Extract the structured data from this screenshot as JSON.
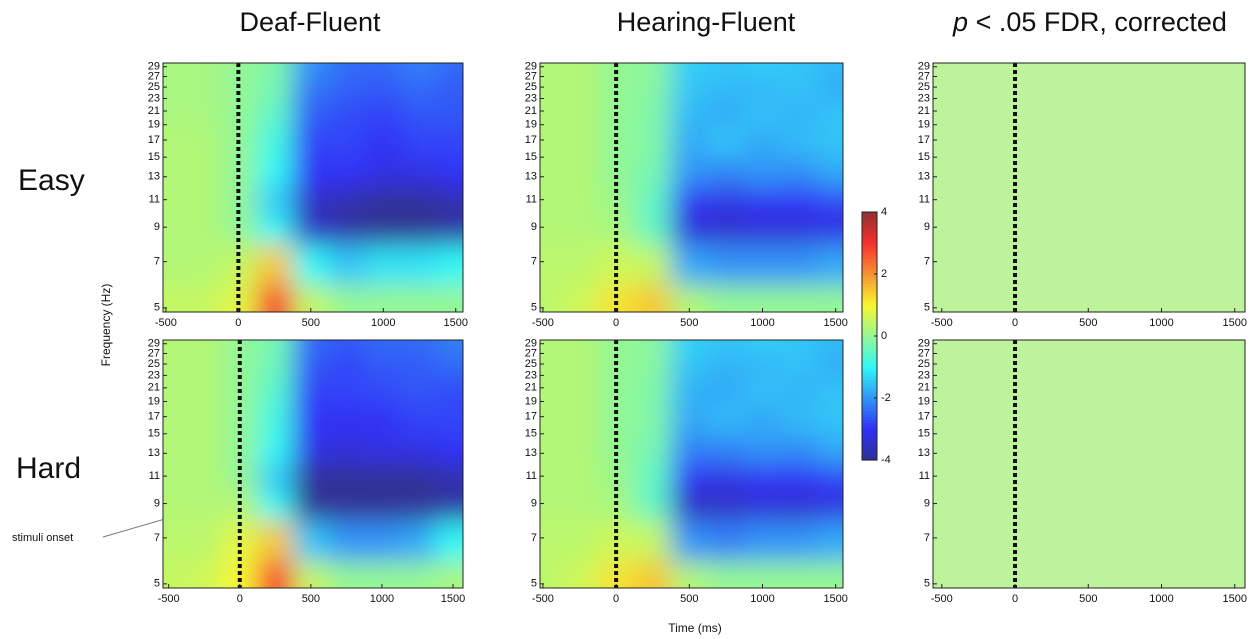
{
  "column_titles": [
    {
      "text": "Deaf-Fluent"
    },
    {
      "text": "Hearing-Fluent"
    },
    {
      "italic": "p",
      "text": "< .05 FDR, corrected"
    }
  ],
  "row_labels": [
    "Easy",
    "Hard"
  ],
  "xlabel": "Time (ms)",
  "ylabel": "Frequency (Hz)",
  "annotation": "stimuli onset",
  "colorbar": {
    "lim": [
      -4,
      4
    ],
    "ticks": [
      -4,
      -2,
      0,
      2,
      4
    ],
    "colormap": "jet"
  },
  "chart_data": [
    {
      "type": "heatmap",
      "x": [
        -500,
        -250,
        0,
        250,
        500,
        750,
        1000,
        1250,
        1500
      ],
      "y": [
        5,
        7,
        9,
        11,
        13,
        17,
        21,
        25,
        29
      ],
      "z": [
        [
          0.5,
          0.5,
          0.8,
          3,
          0.5,
          0,
          0,
          0,
          0
        ],
        [
          0.3,
          0.3,
          0.5,
          1.5,
          -1,
          -1.5,
          -1.2,
          -1.2,
          -1
        ],
        [
          0.3,
          0.3,
          0,
          -1,
          -3.5,
          -3.8,
          -4,
          -4,
          -3.8
        ],
        [
          0.3,
          0.3,
          0,
          -1.5,
          -3.5,
          -3.8,
          -4,
          -4,
          -3.8
        ],
        [
          0.3,
          0.3,
          0,
          -1,
          -3,
          -3,
          -3.2,
          -3.2,
          -3
        ],
        [
          0.3,
          0.3,
          0,
          -0.8,
          -2.8,
          -2.8,
          -3,
          -2.8,
          -2.8
        ],
        [
          0.2,
          0.2,
          0,
          -0.5,
          -2.5,
          -2.7,
          -2.8,
          -2.6,
          -2.6
        ],
        [
          0.2,
          0.2,
          0,
          -0.3,
          -2.3,
          -2.5,
          -2.6,
          -2.4,
          -2.6
        ],
        [
          0.2,
          0.2,
          0,
          -0.2,
          -2,
          -2.4,
          -2.4,
          -2.2,
          -2.4
        ]
      ],
      "xlim": [
        -520,
        1550
      ],
      "xticks": [
        -500,
        0,
        500,
        1000,
        1500
      ],
      "ylim": [
        4.85,
        29.8
      ],
      "ylog": true,
      "yticks": [
        5,
        7,
        9,
        11,
        13,
        15,
        17,
        19,
        21,
        23,
        25,
        27,
        29
      ],
      "onset": 0
    },
    {
      "type": "heatmap",
      "x": [
        -500,
        -250,
        0,
        250,
        500,
        750,
        1000,
        1250,
        1500
      ],
      "y": [
        5,
        7,
        9,
        11,
        13,
        17,
        21,
        25,
        29
      ],
      "z": [
        [
          0.4,
          0.6,
          1.2,
          1.5,
          0.3,
          0,
          0,
          0,
          0
        ],
        [
          0.4,
          0.4,
          0.6,
          0.5,
          -1.8,
          -2,
          -2,
          -2,
          -1.8
        ],
        [
          0.3,
          0.3,
          0.2,
          -0.5,
          -3.3,
          -3.4,
          -3.3,
          -3.3,
          -3.2
        ],
        [
          0.3,
          0.3,
          0.1,
          -0.5,
          -3,
          -3.2,
          -3,
          -3,
          -2.8
        ],
        [
          0.3,
          0.3,
          0,
          -0.3,
          -2,
          -2.2,
          -2,
          -2.1,
          -1.8
        ],
        [
          0.3,
          0.3,
          0,
          -0.2,
          -1.8,
          -1.5,
          -1.8,
          -1.6,
          -1.5
        ],
        [
          0.3,
          0.3,
          0,
          -0.2,
          -1.6,
          -1.8,
          -1.5,
          -1.7,
          -1.5
        ],
        [
          0.3,
          0.3,
          0,
          -0.1,
          -1.5,
          -1.6,
          -1.7,
          -1.5,
          -1.8
        ],
        [
          0.3,
          0.3,
          0,
          -0.1,
          -1.4,
          -1.5,
          -1.4,
          -1.5,
          -1.6
        ]
      ],
      "xlim": [
        -520,
        1550
      ],
      "xticks": [
        -500,
        0,
        500,
        1000,
        1500
      ],
      "ylim": [
        4.85,
        29.8
      ],
      "ylog": true,
      "yticks": [
        5,
        7,
        9,
        11,
        13,
        15,
        17,
        19,
        21,
        23,
        25,
        27,
        29
      ],
      "onset": 0
    },
    {
      "type": "heatmap",
      "color": "#bdf39b",
      "xlim": [
        -560,
        1570
      ],
      "xticks": [
        -500,
        0,
        500,
        1000,
        1500
      ],
      "ylim": [
        4.85,
        29.8
      ],
      "ylog": true,
      "yticks": [
        5,
        7,
        9,
        11,
        13,
        15,
        17,
        19,
        21,
        23,
        25,
        27,
        29
      ],
      "onset": 0
    },
    {
      "type": "heatmap",
      "x": [
        -500,
        -250,
        0,
        250,
        500,
        750,
        1000,
        1250,
        1500
      ],
      "y": [
        5,
        7,
        9,
        11,
        13,
        17,
        21,
        25,
        29
      ],
      "z": [
        [
          0.5,
          0.6,
          1,
          3,
          0.5,
          0,
          0,
          0,
          0.2
        ],
        [
          0.4,
          0.4,
          0.8,
          1.5,
          -1.5,
          -2,
          -2,
          -1.8,
          -1
        ],
        [
          0.3,
          0.3,
          0.3,
          -1,
          -4,
          -4,
          -4,
          -4,
          -3.8
        ],
        [
          0.3,
          0.3,
          0,
          -1.5,
          -4,
          -4.2,
          -4,
          -4,
          -3.8
        ],
        [
          0.3,
          0.3,
          0,
          -1,
          -3.2,
          -3.3,
          -3.2,
          -3.2,
          -3
        ],
        [
          0.3,
          0.3,
          0,
          -0.8,
          -3,
          -3,
          -3,
          -2.8,
          -2.8
        ],
        [
          0.3,
          0.3,
          0,
          -0.6,
          -2.8,
          -2.8,
          -2.7,
          -2.6,
          -2.7
        ],
        [
          0.3,
          0.3,
          0,
          -0.4,
          -2.6,
          -2.8,
          -2.6,
          -2.6,
          -2.4
        ],
        [
          0.3,
          0.3,
          0,
          -0.3,
          -2.4,
          -2.6,
          -2.4,
          -2.4,
          -2.2
        ]
      ],
      "xlim": [
        -540,
        1570
      ],
      "xticks": [
        -500,
        0,
        500,
        1000,
        1500
      ],
      "ylim": [
        4.85,
        29.8
      ],
      "ylog": true,
      "yticks": [
        5,
        7,
        9,
        11,
        13,
        15,
        17,
        19,
        21,
        23,
        25,
        27,
        29
      ],
      "onset": 0
    },
    {
      "type": "heatmap",
      "x": [
        -500,
        -250,
        0,
        250,
        500,
        750,
        1000,
        1250,
        1500
      ],
      "y": [
        5,
        7,
        9,
        11,
        13,
        17,
        21,
        25,
        29
      ],
      "z": [
        [
          0.4,
          0.6,
          1.2,
          1.5,
          0.3,
          0,
          0,
          0,
          0
        ],
        [
          0.4,
          0.4,
          0.6,
          0.5,
          -2,
          -2.2,
          -2,
          -2,
          -1.8
        ],
        [
          0.3,
          0.3,
          0.2,
          -0.5,
          -3.5,
          -3.5,
          -3.3,
          -3.4,
          -3.2
        ],
        [
          0.3,
          0.3,
          0.1,
          -0.5,
          -3,
          -3.2,
          -3,
          -3,
          -2.8
        ],
        [
          0.3,
          0.3,
          0,
          -0.3,
          -2.2,
          -2.2,
          -2,
          -2.1,
          -1.8
        ],
        [
          0.3,
          0.3,
          0,
          -0.2,
          -1.8,
          -1.6,
          -1.8,
          -1.6,
          -1.5
        ],
        [
          0.3,
          0.3,
          0,
          -0.2,
          -1.7,
          -1.8,
          -1.5,
          -1.7,
          -1.5
        ],
        [
          0.3,
          0.3,
          0,
          -0.1,
          -1.5,
          -1.7,
          -1.7,
          -1.5,
          -1.8
        ],
        [
          0.3,
          0.3,
          0,
          -0.1,
          -1.4,
          -1.5,
          -1.4,
          -1.5,
          -1.6
        ]
      ],
      "xlim": [
        -520,
        1550
      ],
      "xticks": [
        -500,
        0,
        500,
        1000,
        1500
      ],
      "ylim": [
        4.85,
        29.8
      ],
      "ylog": true,
      "yticks": [
        5,
        7,
        9,
        11,
        13,
        15,
        17,
        19,
        21,
        23,
        25,
        27,
        29
      ],
      "onset": 0
    },
    {
      "type": "heatmap",
      "color": "#bdf39b",
      "xlim": [
        -560,
        1570
      ],
      "xticks": [
        -500,
        0,
        500,
        1000,
        1500
      ],
      "ylim": [
        4.85,
        29.8
      ],
      "ylog": true,
      "yticks": [
        5,
        7,
        9,
        11,
        13,
        15,
        17,
        19,
        21,
        23,
        25,
        27,
        29
      ],
      "onset": 0
    }
  ]
}
